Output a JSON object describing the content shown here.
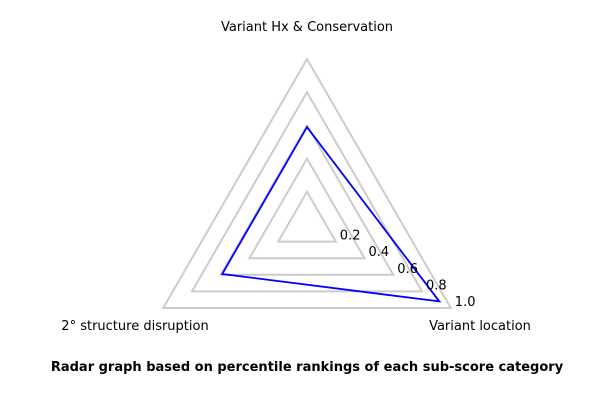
{
  "chart_data": {
    "type": "radar",
    "title": "",
    "caption": "Radar graph based on percentile rankings of each sub-score category",
    "axes": [
      "Variant Hx & Conservation",
      "Variant location",
      "2° structure disruption"
    ],
    "rings": [
      0.2,
      0.4,
      0.6,
      0.8,
      1.0
    ],
    "tick_labels": [
      "0.2",
      "0.4",
      "0.6",
      "0.8",
      "1.0"
    ],
    "range": [
      0,
      1.0
    ],
    "grid": true,
    "series": [
      {
        "values": [
          0.59,
          0.92,
          0.59
        ],
        "color": "#0000ff"
      }
    ],
    "ring_color": "#cccccc"
  }
}
